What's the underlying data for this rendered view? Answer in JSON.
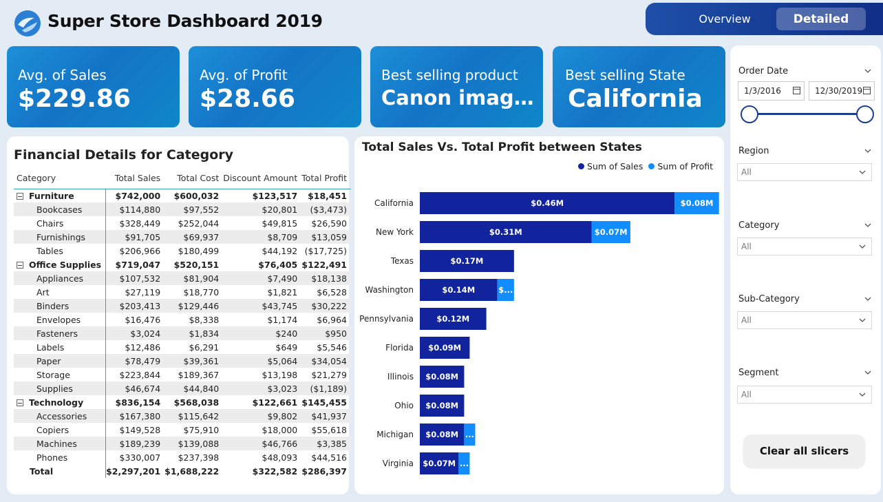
{
  "header": {
    "title": "Super Store Dashboard 2019",
    "nav": {
      "overview": "Overview",
      "detailed": "Detailed",
      "active": "Detailed"
    }
  },
  "kpis": [
    {
      "label": "Avg. of Sales",
      "value": "$229.86"
    },
    {
      "label": "Avg. of Profit",
      "value": "$28.66"
    },
    {
      "label": "Best selling product",
      "value": "Canon imageCL..."
    },
    {
      "label": "Best selling State",
      "value": "California"
    }
  ],
  "financial": {
    "title": "Financial Details for Category",
    "columns": [
      "Category",
      "Total Sales",
      "Total Cost",
      "Discount Amount",
      "Total Profit"
    ],
    "rows": [
      {
        "type": "group",
        "cells": [
          "Furniture",
          "$742,000",
          "$600,032",
          "$123,517",
          "$18,451"
        ]
      },
      {
        "type": "sub",
        "cells": [
          "Bookcases",
          "$114,880",
          "$97,552",
          "$20,801",
          "($3,473)"
        ]
      },
      {
        "type": "sub",
        "cells": [
          "Chairs",
          "$328,449",
          "$252,044",
          "$49,815",
          "$26,590"
        ]
      },
      {
        "type": "sub",
        "cells": [
          "Furnishings",
          "$91,705",
          "$69,937",
          "$8,709",
          "$13,059"
        ]
      },
      {
        "type": "sub",
        "cells": [
          "Tables",
          "$206,966",
          "$180,499",
          "$44,192",
          "($17,725)"
        ]
      },
      {
        "type": "group",
        "cells": [
          "Office Supplies",
          "$719,047",
          "$520,151",
          "$76,405",
          "$122,491"
        ]
      },
      {
        "type": "sub",
        "cells": [
          "Appliances",
          "$107,532",
          "$81,904",
          "$7,490",
          "$18,138"
        ]
      },
      {
        "type": "sub",
        "cells": [
          "Art",
          "$27,119",
          "$18,770",
          "$1,821",
          "$6,528"
        ]
      },
      {
        "type": "sub",
        "cells": [
          "Binders",
          "$203,413",
          "$129,446",
          "$43,745",
          "$30,222"
        ]
      },
      {
        "type": "sub",
        "cells": [
          "Envelopes",
          "$16,476",
          "$8,338",
          "$1,174",
          "$6,964"
        ]
      },
      {
        "type": "sub",
        "cells": [
          "Fasteners",
          "$3,024",
          "$1,834",
          "$240",
          "$950"
        ]
      },
      {
        "type": "sub",
        "cells": [
          "Labels",
          "$12,486",
          "$6,291",
          "$649",
          "$5,546"
        ]
      },
      {
        "type": "sub",
        "cells": [
          "Paper",
          "$78,479",
          "$39,361",
          "$5,064",
          "$34,054"
        ]
      },
      {
        "type": "sub",
        "cells": [
          "Storage",
          "$223,844",
          "$189,367",
          "$13,198",
          "$21,279"
        ]
      },
      {
        "type": "sub",
        "cells": [
          "Supplies",
          "$46,674",
          "$44,840",
          "$3,023",
          "($1,189)"
        ]
      },
      {
        "type": "group",
        "cells": [
          "Technology",
          "$836,154",
          "$568,038",
          "$122,661",
          "$145,455"
        ]
      },
      {
        "type": "sub",
        "cells": [
          "Accessories",
          "$167,380",
          "$115,642",
          "$9,802",
          "$41,937"
        ]
      },
      {
        "type": "sub",
        "cells": [
          "Copiers",
          "$149,528",
          "$75,910",
          "$18,000",
          "$55,618"
        ]
      },
      {
        "type": "sub",
        "cells": [
          "Machines",
          "$189,239",
          "$139,088",
          "$46,766",
          "$3,385"
        ]
      },
      {
        "type": "sub",
        "cells": [
          "Phones",
          "$330,007",
          "$237,398",
          "$48,093",
          "$44,516"
        ]
      },
      {
        "type": "total",
        "cells": [
          "Total",
          "$2,297,201",
          "$1,688,222",
          "$322,582",
          "$286,397"
        ]
      }
    ]
  },
  "chart_data": {
    "type": "bar",
    "orientation": "horizontal",
    "stacked": true,
    "title": "Total Sales Vs. Total Profit between States",
    "legend_position": "top-right",
    "categories": [
      "California",
      "New York",
      "Texas",
      "Washington",
      "Pennsylvania",
      "Florida",
      "Illinois",
      "Ohio",
      "Michigan",
      "Virginia"
    ],
    "series": [
      {
        "name": "Sum of Sales",
        "color": "#12239e",
        "values": [
          0.46,
          0.31,
          0.17,
          0.14,
          0.12,
          0.09,
          0.08,
          0.08,
          0.08,
          0.07
        ],
        "labels": [
          "$0.46M",
          "$0.31M",
          "$0.17M",
          "$0.14M",
          "$0.12M",
          "$0.09M",
          "$0.08M",
          "$0.08M",
          "$0.08M",
          "$0.07M"
        ]
      },
      {
        "name": "Sum of Profit",
        "color": "#118dff",
        "values": [
          0.08,
          0.07,
          0.0,
          0.03,
          0.0,
          0.0,
          0.0,
          0.0,
          0.02,
          0.02
        ],
        "labels": [
          "$0.08M",
          "$0.07M",
          "",
          "$...",
          "",
          "",
          "",
          "",
          "...",
          "..."
        ]
      }
    ],
    "unit": "M"
  },
  "filters": {
    "order_date": {
      "label": "Order Date",
      "start": "1/3/2016",
      "end": "12/30/2019"
    },
    "region": {
      "label": "Region",
      "value": "All"
    },
    "category": {
      "label": "Category",
      "value": "All"
    },
    "sub_category": {
      "label": "Sub-Category",
      "value": "All"
    },
    "segment": {
      "label": "Segment",
      "value": "All"
    },
    "clear_label": "Clear all slicers"
  }
}
